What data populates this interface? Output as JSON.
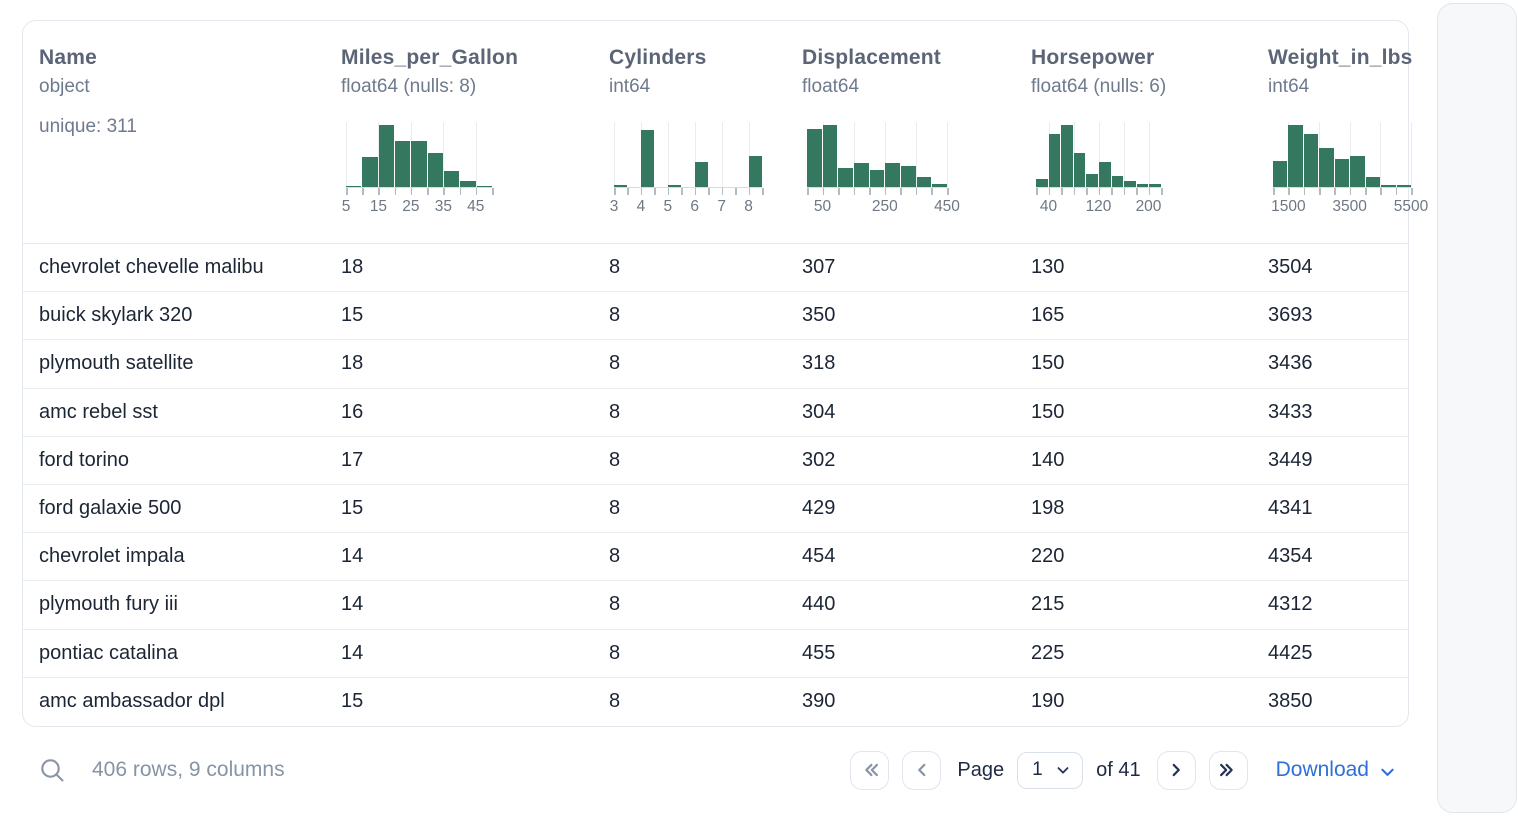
{
  "table": {
    "columns": [
      {
        "name": "Name",
        "dtype": "object",
        "extra": "unique: 311"
      },
      {
        "name": "Miles_per_Gallon",
        "dtype": "float64 (nulls: 8)"
      },
      {
        "name": "Cylinders",
        "dtype": "int64"
      },
      {
        "name": "Displacement",
        "dtype": "float64"
      },
      {
        "name": "Horsepower",
        "dtype": "float64 (nulls: 6)"
      },
      {
        "name": "Weight_in_lbs",
        "dtype": "int64"
      }
    ],
    "rows": [
      [
        "chevrolet chevelle malibu",
        "18",
        "8",
        "307",
        "130",
        "3504"
      ],
      [
        "buick skylark 320",
        "15",
        "8",
        "350",
        "165",
        "3693"
      ],
      [
        "plymouth satellite",
        "18",
        "8",
        "318",
        "150",
        "3436"
      ],
      [
        "amc rebel sst",
        "16",
        "8",
        "304",
        "150",
        "3433"
      ],
      [
        "ford torino",
        "17",
        "8",
        "302",
        "140",
        "3449"
      ],
      [
        "ford galaxie 500",
        "15",
        "8",
        "429",
        "198",
        "4341"
      ],
      [
        "chevrolet impala",
        "14",
        "8",
        "454",
        "220",
        "4354"
      ],
      [
        "plymouth fury iii",
        "14",
        "8",
        "440",
        "215",
        "4312"
      ],
      [
        "pontiac catalina",
        "14",
        "8",
        "455",
        "225",
        "4425"
      ],
      [
        "amc ambassador dpl",
        "15",
        "8",
        "390",
        "190",
        "3850"
      ]
    ]
  },
  "chart_data": [
    {
      "type": "histogram",
      "column": "Miles_per_Gallon",
      "bin_edges": [
        5,
        10,
        15,
        20,
        25,
        30,
        35,
        40,
        45,
        50
      ],
      "heights_pct": [
        2,
        48,
        100,
        74,
        74,
        55,
        26,
        10,
        2
      ],
      "tick_labels": [
        "5",
        "15",
        "25",
        "35",
        "45"
      ],
      "label_edge_indices": [
        0,
        2,
        4,
        6,
        8
      ],
      "grid_edge_indices": [
        0,
        2,
        4,
        6,
        8
      ],
      "bar_color": "#34795f"
    },
    {
      "type": "histogram",
      "column": "Cylinders",
      "bin_edges": [
        3,
        3.5,
        4,
        4.5,
        5,
        5.5,
        6,
        6.5,
        7,
        7.5,
        8,
        8.5
      ],
      "heights_pct": [
        3,
        0,
        92,
        0,
        3,
        0,
        40,
        0,
        0,
        0,
        50
      ],
      "tick_labels": [
        "3",
        "4",
        "5",
        "6",
        "7",
        "8"
      ],
      "label_edge_indices": [
        0,
        2,
        4,
        6,
        8,
        10
      ],
      "grid_edge_indices": [
        0,
        2,
        4,
        6,
        8,
        10
      ],
      "bar_color": "#34795f"
    },
    {
      "type": "histogram",
      "column": "Displacement",
      "bin_edges": [
        0,
        50,
        100,
        150,
        200,
        250,
        300,
        350,
        400,
        450
      ],
      "heights_pct": [
        94,
        100,
        31,
        39,
        27,
        39,
        34,
        16,
        5
      ],
      "tick_labels": [
        "50",
        "250",
        "450"
      ],
      "label_edge_indices": [
        1,
        5,
        9
      ],
      "grid_edge_indices": [
        1,
        3,
        5,
        7,
        9
      ],
      "bar_color": "#34795f"
    },
    {
      "type": "histogram",
      "column": "Horsepower",
      "bin_edges": [
        20,
        40,
        60,
        80,
        100,
        120,
        140,
        160,
        180,
        200,
        220
      ],
      "heights_pct": [
        13,
        85,
        100,
        55,
        21,
        40,
        18,
        10,
        5,
        5
      ],
      "tick_labels": [
        "40",
        "120",
        "200"
      ],
      "label_edge_indices": [
        1,
        5,
        9
      ],
      "grid_edge_indices": [
        1,
        3,
        5,
        7,
        9
      ],
      "bar_color": "#34795f"
    },
    {
      "type": "histogram",
      "column": "Weight_in_lbs",
      "bin_edges": [
        1000,
        1500,
        2000,
        2500,
        3000,
        3500,
        4000,
        4500,
        5000,
        5500
      ],
      "heights_pct": [
        42,
        100,
        85,
        63,
        45,
        50,
        16,
        3,
        3
      ],
      "tick_labels": [
        "1500",
        "3500",
        "5500"
      ],
      "label_edge_indices": [
        1,
        5,
        9
      ],
      "grid_edge_indices": [
        1,
        3,
        5,
        7,
        9
      ],
      "bar_color": "#34795f"
    }
  ],
  "footer": {
    "summary": "406 rows, 9 columns",
    "page_label": "Page",
    "page_value": "1",
    "of_label": "of 41",
    "download_label": "Download"
  },
  "colors": {
    "histogram_bar": "#34795f",
    "header_text": "#5b6576",
    "dtype_text": "#6e7a8d",
    "row_text": "#1b2534",
    "card_border": "#e3e8ee",
    "row_border": "#e8ecf0",
    "summary_text": "#8694a6",
    "control_dark": "#253252",
    "control_disabled": "#8a94a4",
    "link_blue": "#2e6fd9"
  }
}
